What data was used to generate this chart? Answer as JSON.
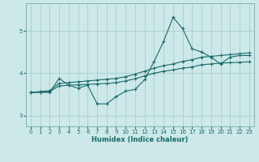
{
  "xlabel": "Humidex (Indice chaleur)",
  "bg_color": "#cce8e8",
  "grid_color": "#aacece",
  "line_color": "#1a6b6b",
  "x_values": [
    0,
    1,
    2,
    3,
    4,
    5,
    6,
    7,
    8,
    9,
    10,
    11,
    12,
    13,
    14,
    15,
    16,
    17,
    18,
    19,
    20,
    21,
    22,
    23
  ],
  "line1_y": [
    3.55,
    3.55,
    3.55,
    3.88,
    3.72,
    3.65,
    3.72,
    3.28,
    3.28,
    3.45,
    3.58,
    3.62,
    3.85,
    4.28,
    4.75,
    5.32,
    5.05,
    4.58,
    4.5,
    4.38,
    4.22,
    4.38,
    4.42,
    4.42
  ],
  "line2_y": [
    3.55,
    3.57,
    3.59,
    3.76,
    3.78,
    3.8,
    3.82,
    3.84,
    3.86,
    3.88,
    3.92,
    3.98,
    4.05,
    4.12,
    4.18,
    4.22,
    4.28,
    4.32,
    4.38,
    4.4,
    4.42,
    4.44,
    4.46,
    4.48
  ],
  "line3_y": [
    3.55,
    3.56,
    3.57,
    3.7,
    3.72,
    3.73,
    3.74,
    3.75,
    3.76,
    3.78,
    3.82,
    3.87,
    3.94,
    4.0,
    4.05,
    4.08,
    4.12,
    4.15,
    4.2,
    4.22,
    4.24,
    4.25,
    4.26,
    4.27
  ],
  "ylim": [
    2.75,
    5.65
  ],
  "yticks": [
    3,
    4,
    5
  ],
  "xticks": [
    0,
    1,
    2,
    3,
    4,
    5,
    6,
    7,
    8,
    9,
    10,
    11,
    12,
    13,
    14,
    15,
    16,
    17,
    18,
    19,
    20,
    21,
    22,
    23
  ]
}
